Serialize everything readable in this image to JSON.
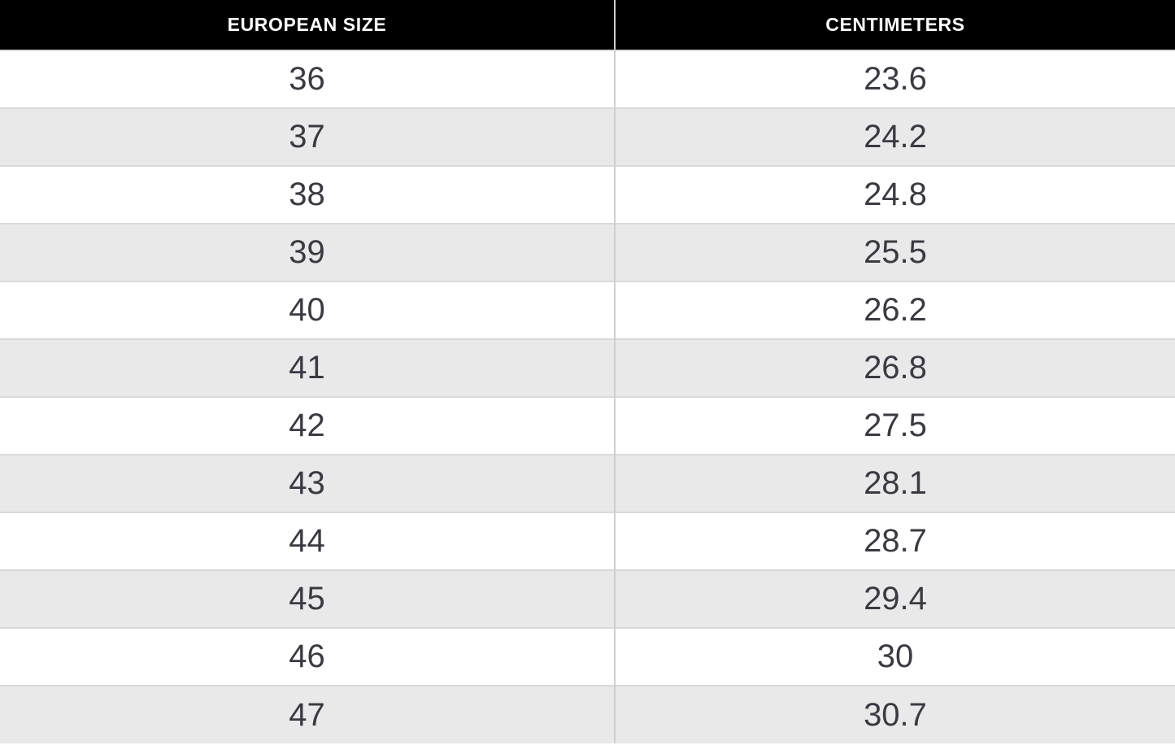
{
  "table": {
    "columns": [
      "EUROPEAN SIZE",
      "CENTIMETERS"
    ],
    "rows": [
      [
        "36",
        "23.6"
      ],
      [
        "37",
        "24.2"
      ],
      [
        "38",
        "24.8"
      ],
      [
        "39",
        "25.5"
      ],
      [
        "40",
        "26.2"
      ],
      [
        "41",
        "26.8"
      ],
      [
        "42",
        "27.5"
      ],
      [
        "43",
        "28.1"
      ],
      [
        "44",
        "28.7"
      ],
      [
        "45",
        "29.4"
      ],
      [
        "46",
        "30"
      ],
      [
        "47",
        "30.7"
      ]
    ]
  },
  "colors": {
    "header_bg": "#000000",
    "header_text": "#ffffff",
    "row_bg": "#ffffff",
    "row_alt_bg": "#e9e9ea",
    "cell_text": "#3a3a44",
    "column_divider": "#cfcfcf",
    "row_border": "#d9d9d9"
  },
  "chart_data": {
    "type": "table",
    "columns": [
      "EUROPEAN SIZE",
      "CENTIMETERS"
    ],
    "rows": [
      [
        36,
        23.6
      ],
      [
        37,
        24.2
      ],
      [
        38,
        24.8
      ],
      [
        39,
        25.5
      ],
      [
        40,
        26.2
      ],
      [
        41,
        26.8
      ],
      [
        42,
        27.5
      ],
      [
        43,
        28.1
      ],
      [
        44,
        28.7
      ],
      [
        45,
        29.4
      ],
      [
        46,
        30
      ],
      [
        47,
        30.7
      ]
    ]
  }
}
